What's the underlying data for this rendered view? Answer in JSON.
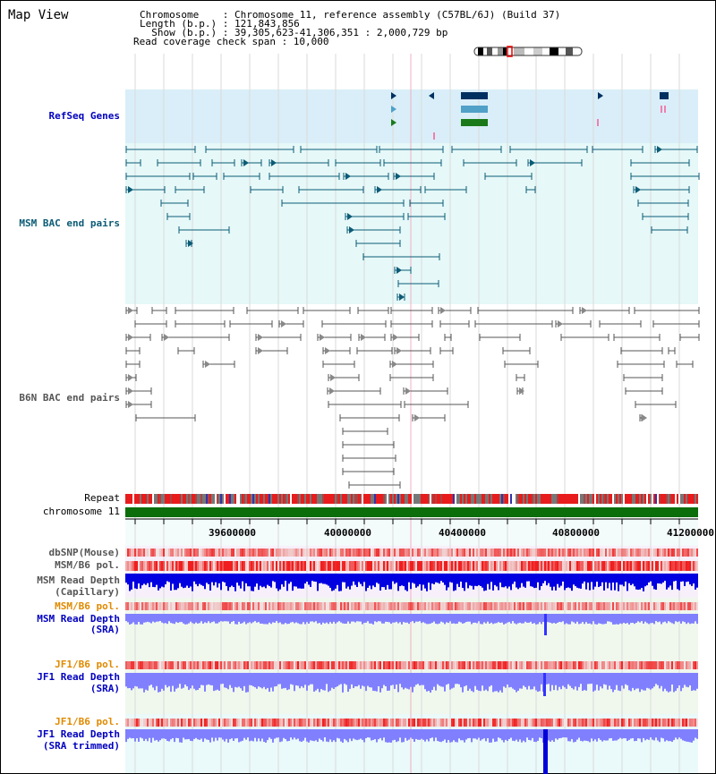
{
  "app": {
    "title": "Map View"
  },
  "info": {
    "chromosome_line": "Chromosome    : Chromosome 11, reference assembly (C57BL/6J) (Build 37)",
    "length_line": "Length (b.p.) : 121,843,856",
    "show_line": "  Show (b.p.) : 39,305,623-41,306,351 : 2,000,729 bp",
    "coverage_line": "Read coverage check span : 10,000"
  },
  "tracks": {
    "refseq": "RefSeq Genes",
    "msm_bac": "MSM BAC end pairs",
    "b6n_bac": "B6N BAC end pairs",
    "repeat": "Repeat",
    "chromosome": "chromosome 11",
    "dbsnp": "dbSNP(Mouse)",
    "msm_b6_pol_1": "MSM/B6 pol.",
    "msm_read_depth_cap_1": "MSM Read Depth",
    "msm_read_depth_cap_2": "(Capillary)",
    "msm_b6_pol_2": "MSM/B6 pol.",
    "msm_read_depth_sra_1": "MSM Read Depth",
    "msm_read_depth_sra_2": "(SRA)",
    "jf1_b6_pol_1": "JF1/B6 pol.",
    "jf1_read_depth_sra_1": "JF1 Read Depth",
    "jf1_read_depth_sra_2": "(SRA)",
    "jf1_b6_pol_2": "JF1/B6 pol.",
    "jf1_read_depth_trim_1": "JF1 Read Depth",
    "jf1_read_depth_trim_2": "(SRA trimmed)"
  },
  "axis": {
    "ticks": [
      "39600000",
      "40000000",
      "40400000",
      "40800000",
      "41200000"
    ]
  },
  "colors": {
    "refseq_bg": "#d9eef8",
    "bac_bg": "#e6f8f8",
    "msm_pair": "#0b5b76",
    "b6n_pair": "#555555",
    "chromosome_bar": "#0b6e0b",
    "snp_red": "#e81c1c",
    "depth_dark": "#0000e0",
    "depth_light": "#8080ff",
    "cursor": "#f0b0c0"
  }
}
